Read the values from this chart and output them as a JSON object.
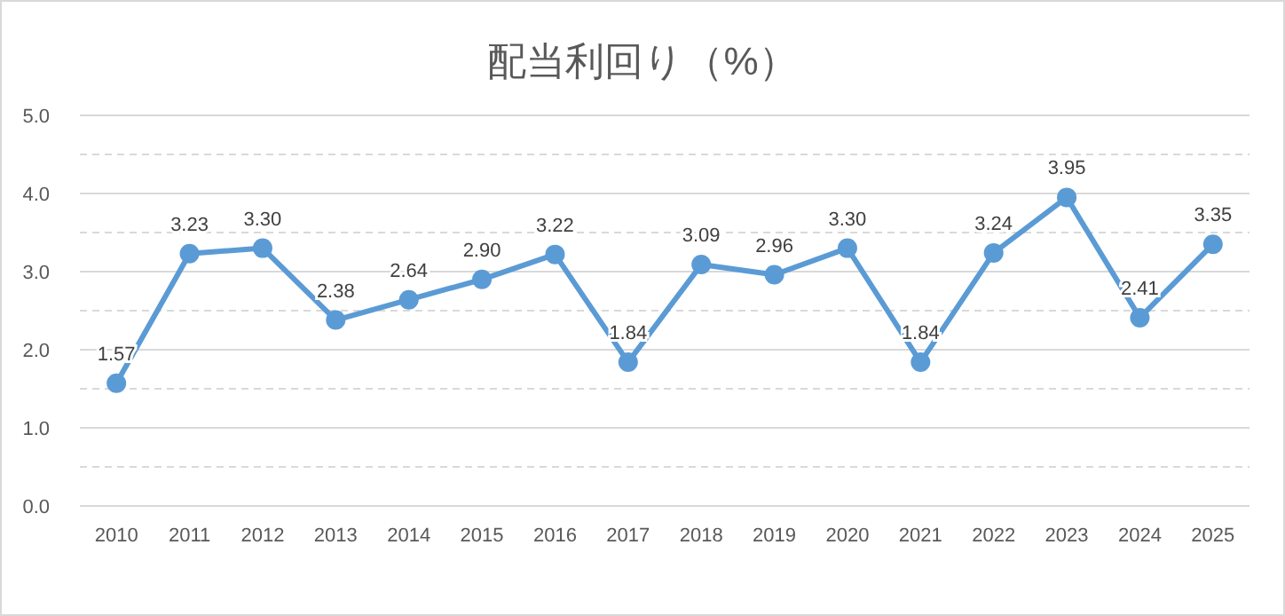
{
  "chart_data": {
    "type": "line",
    "title": "配当利回り（%）",
    "categories": [
      "2010",
      "2011",
      "2012",
      "2013",
      "2014",
      "2015",
      "2016",
      "2017",
      "2018",
      "2019",
      "2020",
      "2021",
      "2022",
      "2023",
      "2024",
      "2025"
    ],
    "series": [
      {
        "color": "#5b9bd5",
        "values": [
          1.57,
          3.23,
          3.3,
          2.38,
          2.64,
          2.9,
          3.22,
          1.84,
          3.09,
          2.96,
          3.3,
          1.84,
          3.24,
          3.95,
          2.41,
          3.35
        ]
      }
    ],
    "value_labels": [
      "1.57",
      "3.23",
      "3.30",
      "2.38",
      "2.64",
      "2.90",
      "3.22",
      "1.84",
      "3.09",
      "2.96",
      "3.30",
      "1.84",
      "3.24",
      "3.95",
      "2.41",
      "3.35"
    ],
    "ylim": [
      0,
      5
    ],
    "yticks": [
      {
        "value": 0,
        "label": "0.0"
      },
      {
        "value": 0.5,
        "label": null
      },
      {
        "value": 1,
        "label": "1.0"
      },
      {
        "value": 1.5,
        "label": null
      },
      {
        "value": 2,
        "label": "2.0"
      },
      {
        "value": 2.5,
        "label": null
      },
      {
        "value": 3,
        "label": "3.0"
      },
      {
        "value": 3.5,
        "label": null
      },
      {
        "value": 4,
        "label": "4.0"
      },
      {
        "value": 4.5,
        "label": null
      },
      {
        "value": 5,
        "label": "5.0"
      }
    ],
    "grid": true,
    "marker": "circle",
    "line_style": "solid"
  }
}
